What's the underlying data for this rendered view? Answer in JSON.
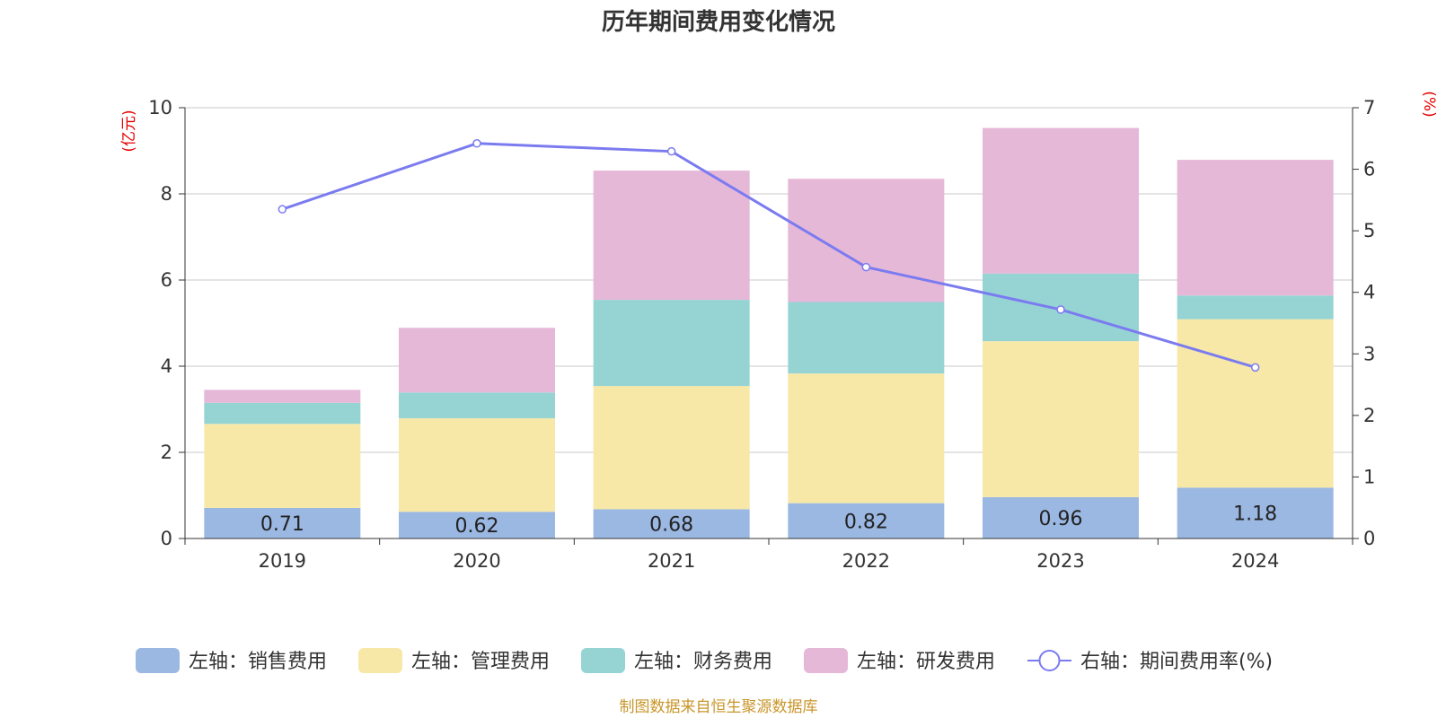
{
  "chart_data": {
    "type": "bar",
    "stacked": true,
    "title": "历年期间费用变化情况",
    "categories": [
      "2019",
      "2020",
      "2021",
      "2022",
      "2023",
      "2024"
    ],
    "left_axis": {
      "unit": "(亿元)",
      "range": [
        0,
        10
      ],
      "ticks": [
        "0",
        "2",
        "4",
        "6",
        "8",
        "10"
      ]
    },
    "right_axis": {
      "unit": "(%)",
      "range": [
        0,
        7
      ],
      "ticks": [
        "0",
        "1",
        "2",
        "3",
        "4",
        "5",
        "6",
        "7"
      ]
    },
    "series": [
      {
        "name": "左轴：销售费用",
        "axis": "left",
        "type": "bar",
        "color": "#9bb8e3",
        "values": [
          0.71,
          0.62,
          0.68,
          0.82,
          0.96,
          1.18
        ],
        "labels": [
          "0.71",
          "0.62",
          "0.68",
          "0.82",
          "0.96",
          "1.18"
        ]
      },
      {
        "name": "左轴：管理费用",
        "axis": "left",
        "type": "bar",
        "color": "#f7e8a8",
        "values": [
          1.95,
          2.17,
          2.86,
          3.01,
          3.62,
          3.91
        ]
      },
      {
        "name": "左轴：财务费用",
        "axis": "left",
        "type": "bar",
        "color": "#96d4d4",
        "values": [
          0.49,
          0.6,
          2.0,
          1.66,
          1.57,
          0.55
        ]
      },
      {
        "name": "左轴：研发费用",
        "axis": "left",
        "type": "bar",
        "color": "#e6b8d8",
        "values": [
          0.3,
          1.5,
          3.0,
          2.86,
          3.38,
          3.15
        ]
      },
      {
        "name": "右轴：期间费用率(%)",
        "axis": "right",
        "type": "line",
        "color": "#7b7bf0",
        "values": [
          5.35,
          6.42,
          6.29,
          4.41,
          3.72,
          2.78
        ]
      }
    ],
    "grid": true,
    "legend_position": "bottom"
  },
  "source": "制图数据来自恒生聚源数据库"
}
